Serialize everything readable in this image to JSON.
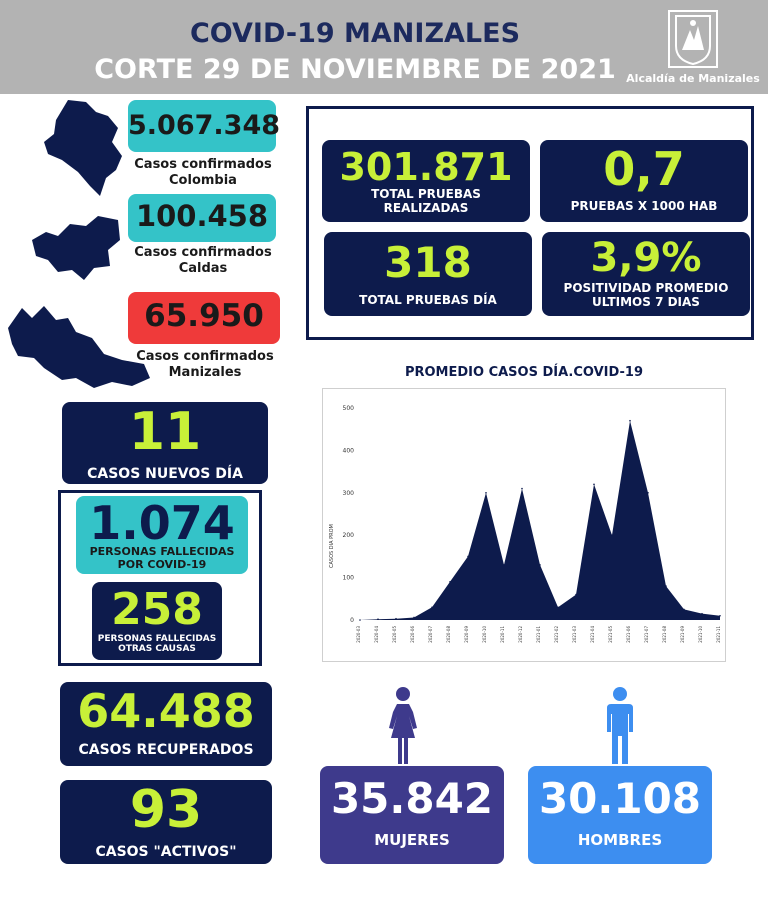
{
  "header": {
    "title_line1": "COVID-19 MANIZALES",
    "title_line2": "CORTE 29 DE NOVIEMBRE DE 2021",
    "logo_text": "Alcaldía de Manizales"
  },
  "left_stats": {
    "colombia": {
      "value": "5.067.348",
      "label1": "Casos confirmados",
      "label2": "Colombia"
    },
    "caldas": {
      "value": "100.458",
      "label1": "Casos confirmados",
      "label2": "Caldas"
    },
    "manizales": {
      "value": "65.950",
      "label1": "Casos confirmados",
      "label2": "Manizales"
    }
  },
  "tests": {
    "total": {
      "value": "301.871",
      "label1": "TOTAL PRUEBAS",
      "label2": "REALIZADAS"
    },
    "per_1000": {
      "value": "0,7",
      "label": "PRUEBAS X 1000 HAB"
    },
    "daily": {
      "value": "318",
      "label": "TOTAL PRUEBAS DÍA"
    },
    "positivity": {
      "value": "3,9%",
      "label1": "POSITIVIDAD PROMEDIO",
      "label2": "ULTIMOS 7 DIAS"
    }
  },
  "cases": {
    "new": {
      "value": "11",
      "label": "CASOS NUEVOS DÍA"
    },
    "deaths_covid": {
      "value": "1.074",
      "label1": "PERSONAS FALLECIDAS",
      "label2": "POR COVID-19"
    },
    "deaths_other": {
      "value": "258",
      "label1": "PERSONAS FALLECIDAS",
      "label2": "OTRAS CAUSAS"
    },
    "recovered": {
      "value": "64.488",
      "label": "CASOS RECUPERADOS"
    },
    "active": {
      "value": "93",
      "label": "CASOS \"ACTIVOS\""
    }
  },
  "gender": {
    "women": {
      "value": "35.842",
      "label": "MUJERES",
      "color": "#3e3a8c"
    },
    "men": {
      "value": "30.108",
      "label": "HOMBRES",
      "color": "#3d8ef0"
    }
  },
  "colors": {
    "navy": "#0d1b4c",
    "teal": "#34c3c8",
    "red": "#ef3a3a",
    "lime": "#c8f038",
    "header": "#b3b3b3"
  },
  "chart_data": {
    "type": "area",
    "title": "PROMEDIO CASOS DÍA.COVID-19",
    "ylabel": "CASOS DIA PROM",
    "xlabel": "",
    "ylim": [
      0,
      500
    ],
    "yticks": [
      0,
      100,
      200,
      300,
      400,
      500
    ],
    "grid": false,
    "color": "#0d1b4c",
    "x": [
      "2020-03",
      "2020-04",
      "2020-05",
      "2020-06",
      "2020-07",
      "2020-08",
      "2020-09",
      "2020-10",
      "2020-11",
      "2020-12",
      "2021-01",
      "2021-02",
      "2021-03",
      "2021-04",
      "2021-05",
      "2021-06",
      "2021-07",
      "2021-08",
      "2021-09",
      "2021-10",
      "2021-11"
    ],
    "values": [
      0,
      2,
      3,
      6,
      30,
      90,
      150,
      300,
      130,
      310,
      130,
      30,
      60,
      320,
      200,
      470,
      300,
      80,
      25,
      15,
      10
    ]
  }
}
